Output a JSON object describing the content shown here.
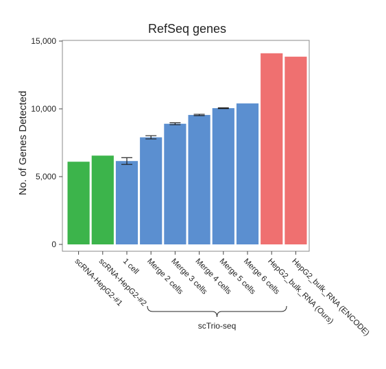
{
  "chart_data": {
    "type": "bar",
    "title": "RefSeq genes",
    "xlabel": "",
    "ylabel": "No. of Genes Detected",
    "ylim": [
      0,
      15000
    ],
    "yticks": [
      0,
      5000,
      10000,
      15000
    ],
    "ytick_labels": [
      "0",
      "5,000",
      "10,000",
      "15,000"
    ],
    "grid": false,
    "legend": "none",
    "categories": [
      "scRNA-HepG2-#1",
      "scRNA-HepG2-#2",
      "1 cell",
      "Merge 2 cells",
      "Merge 3 cells",
      "Merge 4 cells",
      "Merge 5 cells",
      "Merge 6 cells",
      "HepG2_bulk_RNA (Ours)",
      "HepG2_bulk_RNA (ENCODE)"
    ],
    "values": [
      6100,
      6550,
      6150,
      7900,
      8900,
      9550,
      10050,
      10400,
      14100,
      13850
    ],
    "error": [
      null,
      null,
      250,
      120,
      70,
      50,
      30,
      null,
      null,
      null
    ],
    "colors": [
      "#3cb44b",
      "#3cb44b",
      "#5b8fd0",
      "#5b8fd0",
      "#5b8fd0",
      "#5b8fd0",
      "#5b8fd0",
      "#5b8fd0",
      "#ef7070",
      "#ef7070"
    ],
    "group_label": {
      "text": "scTrio-seq",
      "from_index": 2,
      "to_index": 7
    }
  }
}
